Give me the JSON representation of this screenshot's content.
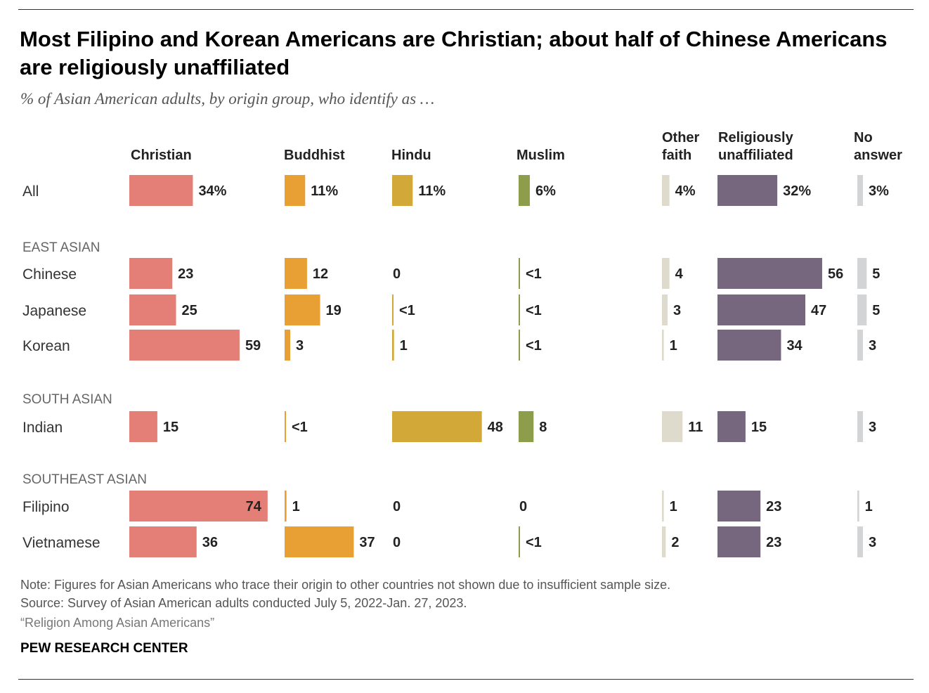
{
  "title": "Most Filipino and Korean Americans are Christian; about half of Chinese Americans are religiously unaffiliated",
  "subtitle": "% of Asian American adults, by origin group, who identify as …",
  "footer": {
    "note": "Note: Figures for Asian Americans who trace their origin to other countries not shown due to insufficient sample size.",
    "source": "Source: Survey of Asian American adults conducted July 5, 2022-Jan. 27, 2023.",
    "report": "“Religion Among Asian Americans”",
    "org": "PEW RESEARCH CENTER"
  },
  "chart_data": {
    "type": "bar",
    "title": "Most Filipino and Korean Americans are Christian; about half of Chinese Americans are religiously unaffiliated",
    "subtitle": "% of Asian American adults, by origin group, who identify as …",
    "series": [
      {
        "key": "christian",
        "name": [
          "Christian"
        ],
        "color": "#e37f76"
      },
      {
        "key": "buddhist",
        "name": [
          "Buddhist"
        ],
        "color": "#e89f33"
      },
      {
        "key": "hindu",
        "name": [
          "Hindu"
        ],
        "color": "#d2a938"
      },
      {
        "key": "muslim",
        "name": [
          "Muslim"
        ],
        "color": "#8c9e4c"
      },
      {
        "key": "other",
        "name": [
          "Other",
          "faith"
        ],
        "color": "#dedbcd"
      },
      {
        "key": "unaffiliated",
        "name": [
          "Religiously",
          "unaffiliated"
        ],
        "color": "#76677f"
      },
      {
        "key": "noanswer",
        "name": [
          "No",
          "answer"
        ],
        "color": "#d3d4d6"
      }
    ],
    "groups": [
      {
        "label": "",
        "rows": [
          {
            "label": "All",
            "values": [
              34,
              11,
              11,
              6,
              4,
              32,
              3
            ],
            "labels": [
              "34%",
              "11%",
              "11%",
              "6%",
              "4%",
              "32%",
              "3%"
            ]
          }
        ]
      },
      {
        "label": "EAST ASIAN",
        "rows": [
          {
            "label": "Chinese",
            "values": [
              23,
              12,
              0,
              0.5,
              4,
              56,
              5
            ],
            "labels": [
              "23",
              "12",
              "0",
              "<1",
              "4",
              "56",
              "5"
            ]
          },
          {
            "label": "Japanese",
            "values": [
              25,
              19,
              0.5,
              0.5,
              3,
              47,
              5
            ],
            "labels": [
              "25",
              "19",
              "<1",
              "<1",
              "3",
              "47",
              "5"
            ]
          },
          {
            "label": "Korean",
            "values": [
              59,
              3,
              1,
              0.5,
              1,
              34,
              3
            ],
            "labels": [
              "59",
              "3",
              "1",
              "<1",
              "1",
              "34",
              "3"
            ]
          }
        ]
      },
      {
        "label": "SOUTH ASIAN",
        "rows": [
          {
            "label": "Indian",
            "values": [
              15,
              0.5,
              48,
              8,
              11,
              15,
              3
            ],
            "labels": [
              "15",
              "<1",
              "48",
              "8",
              "11",
              "15",
              "3"
            ]
          }
        ]
      },
      {
        "label": "SOUTHEAST ASIAN",
        "rows": [
          {
            "label": "Filipino",
            "values": [
              74,
              1,
              0,
              0,
              1,
              23,
              1
            ],
            "labels": [
              "74",
              "1",
              "0",
              "0",
              "1",
              "23",
              "1"
            ]
          },
          {
            "label": "Vietnamese",
            "values": [
              36,
              37,
              0,
              0.5,
              2,
              23,
              3
            ],
            "labels": [
              "36",
              "37",
              "0",
              "<1",
              "2",
              "23",
              "3"
            ]
          }
        ]
      }
    ]
  }
}
